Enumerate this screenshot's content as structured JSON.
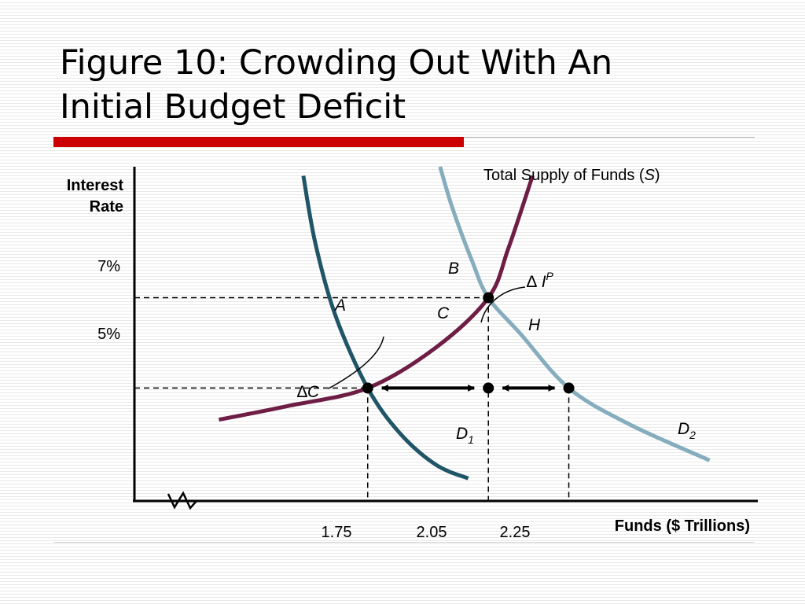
{
  "title_lines": [
    "Figure 10:  Crowding Out With An",
    "Initial Budget Deficit"
  ],
  "colors": {
    "accent_bar": "#cc0000",
    "d1": "#1f5566",
    "d2": "#86adbd",
    "supply": "#6e1e45"
  },
  "chart_data": {
    "type": "line",
    "title": "Figure 10:  Crowding Out With An Initial Budget Deficit",
    "xlabel": "Funds ($ Trillions)",
    "ylabel_lines": [
      "Interest",
      "Rate"
    ],
    "y_tick_labels": [
      "7%",
      "5%"
    ],
    "x_tick_labels": [
      "1.75",
      "2.05",
      "2.25"
    ],
    "y_ticks": [
      7,
      5
    ],
    "x_ticks": [
      1.75,
      2.05,
      2.25
    ],
    "xlim": [
      1.17,
      2.72
    ],
    "ylim": [
      2.5,
      9.9
    ],
    "axis_break": true,
    "grid": false,
    "series": [
      {
        "name": "D",
        "sub": "1",
        "color": "#1f5566",
        "x": [
          1.59,
          1.62,
          1.67,
          1.75,
          1.83,
          1.92,
          2.0
        ],
        "y": [
          9.7,
          8.2,
          6.6,
          5.0,
          4.0,
          3.3,
          3.0
        ]
      },
      {
        "name": "D",
        "sub": "2",
        "color": "#86adbd",
        "x": [
          1.93,
          1.96,
          2.01,
          2.05,
          2.13,
          2.25,
          2.4,
          2.6
        ],
        "y": [
          9.9,
          9.0,
          7.8,
          7.0,
          6.2,
          5.0,
          4.2,
          3.4
        ]
      },
      {
        "name": "Total Supply of Funds (S)",
        "label_parts": [
          "Total Supply of Funds (",
          "S",
          ")"
        ],
        "color": "#6e1e45",
        "x": [
          1.38,
          1.55,
          1.75,
          1.92,
          2.05,
          2.1,
          2.16
        ],
        "y": [
          4.3,
          4.6,
          5.0,
          5.9,
          7.0,
          8.1,
          9.7
        ]
      }
    ],
    "points": [
      {
        "label": "A",
        "x": 1.75,
        "y": 5
      },
      {
        "label": "B",
        "x": 2.05,
        "y": 7
      },
      {
        "label": "C",
        "x": 2.05,
        "y": 5
      },
      {
        "label": "H",
        "x": 2.25,
        "y": 5
      }
    ],
    "annotations": [
      {
        "label": "∆C",
        "parts": [
          "∆",
          "C"
        ],
        "meaning": "double arrow from 1.75 to 2.05 at 5%"
      },
      {
        "label": "∆ IP",
        "parts": [
          "∆ ",
          "I",
          "P"
        ],
        "meaning": "double arrow from 2.05 to 2.25 at 5%"
      }
    ]
  }
}
